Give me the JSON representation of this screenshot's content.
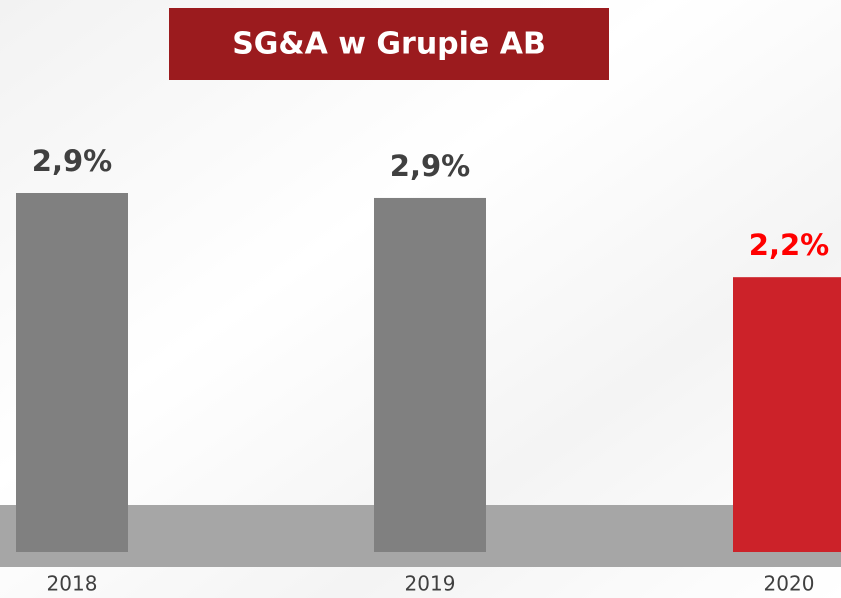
{
  "chart_data": {
    "type": "bar",
    "title": "SG&A w Grupie AB",
    "categories": [
      "2018",
      "2019",
      "2020"
    ],
    "values": [
      2.9,
      2.86,
      2.22
    ],
    "value_labels": [
      "2,9%",
      "2,9%",
      "2,2%"
    ],
    "colors": [
      "#808080",
      "#808080",
      "#cc2229"
    ],
    "label_colors": [
      "#404040",
      "#404040",
      "#ff0000"
    ],
    "title_background": "#9b1b1e"
  }
}
